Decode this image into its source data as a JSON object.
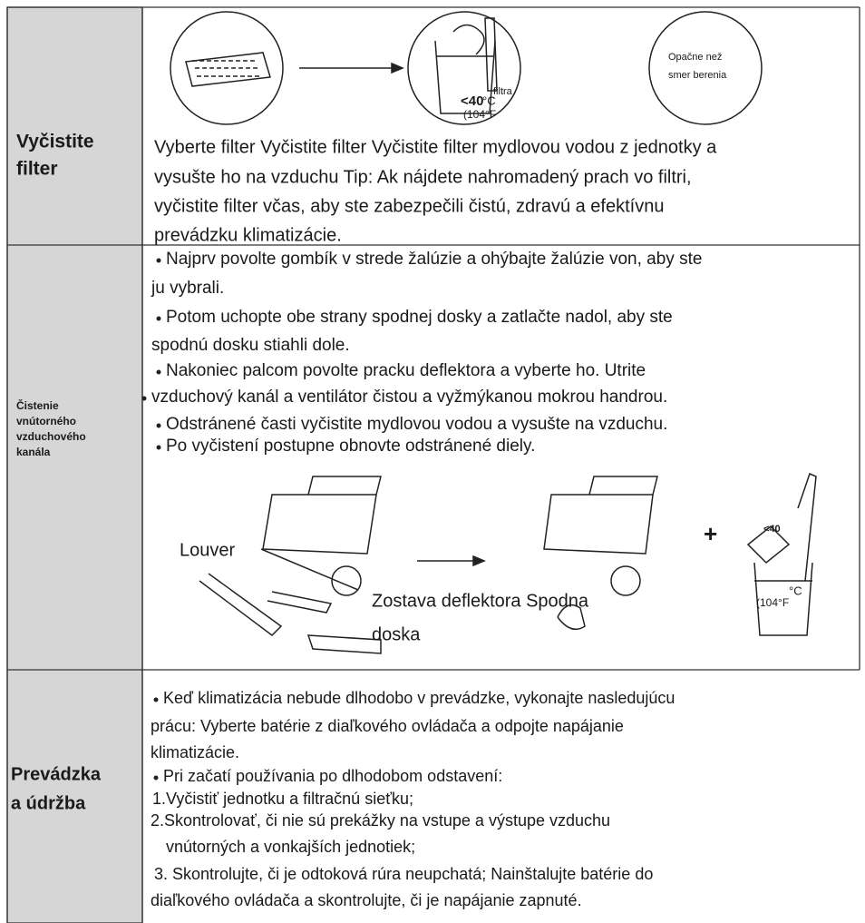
{
  "rows": [
    {
      "label": [
        "Vyčistite",
        "filter"
      ],
      "figure_labels": [
        "<40",
        "°C",
        "filtra",
        "(104°F",
        "Opačne než",
        "smer berenia"
      ],
      "lines": [
        "Vyberte filter Vyčistite filter Vyčistite filter mydlovou vodou z jednotky a",
        "vysušte ho na vzduchu Tip: Ak nájdete nahromadený prach vo filtri,",
        "vyčistite filter včas, aby ste zabezpečili čistú, zdravú a efektívnu",
        "prevádzku klimatizácie."
      ]
    },
    {
      "label": [
        "Čistenie",
        "vnútorného",
        "vzduchového",
        "kanála"
      ],
      "lines": [
        "Najprv povolte gombík v strede žalúzie a ohýbajte žalúzie von, aby ste",
        "ju vybrali.",
        "Potom uchopte obe strany spodnej dosky a zatlačte nadol, aby ste",
        "spodnú dosku stiahli dole.",
        "Nakoniec palcom povolte pracku deflektora a vyberte ho. Utrite",
        "vzduchový kanál a ventilátor čistou a vyžmýkanou mokrou handrou.",
        "Odstránené časti vyčistite mydlovou vodou a vysušte na vzduchu.",
        "Po vyčistení postupne obnovte odstránené diely."
      ],
      "figure_labels": [
        "Louver",
        "Zostava deflektora Spodna",
        "doska",
        "+",
        "<40",
        "°C",
        "(104°F"
      ]
    },
    {
      "label": [
        "Prevádzka",
        "a údržba"
      ],
      "lines": [
        "Keď klimatizácia nebude dlhodobo v prevádzke, vykonajte nasledujúcu",
        "prácu: Vyberte batérie z diaľkového ovládača a odpojte napájanie",
        "klimatizácie.",
        "Pri začatí používania po dlhodobom odstavení:",
        "1.Vyčistiť jednotku a filtračnú sieťku;",
        "2.Skontrolovať, či nie sú prekážky na vstupe a výstupe vzduchu",
        "vnútorných a vonkajších jednotiek;",
        "3. Skontrolujte, či je odtoková rúra neupchatá; Nainštalujte batérie do",
        "diaľkového ovládača a skontrolujte, či je napájanie zapnuté."
      ]
    }
  ]
}
